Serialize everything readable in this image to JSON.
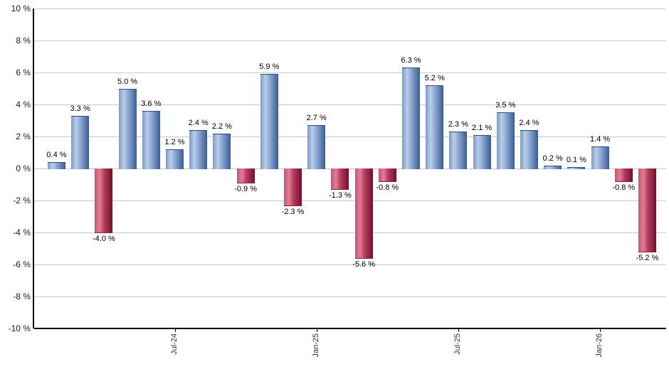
{
  "chart_data": {
    "type": "bar",
    "title": "",
    "xlabel": "",
    "ylabel": "",
    "grid": true,
    "legend": false,
    "values": [
      0.4,
      3.3,
      -4.0,
      5.0,
      3.6,
      1.2,
      2.4,
      2.2,
      -0.9,
      5.9,
      -2.3,
      2.7,
      -1.3,
      -5.6,
      -0.8,
      6.3,
      5.2,
      2.3,
      2.1,
      3.5,
      2.4,
      0.2,
      0.1,
      1.4,
      -0.8,
      -5.2
    ],
    "value_labels": [
      "0.4 %",
      "3.3 %",
      "-4.0 %",
      "5.0 %",
      "3.6 %",
      "1.2 %",
      "2.4 %",
      "2.2 %",
      "-0.9 %",
      "5.9 %",
      "-2.3 %",
      "2.7 %",
      "-1.3 %",
      "-5.6 %",
      "-0.8 %",
      "6.3 %",
      "5.2 %",
      "2.3 %",
      "2.1 %",
      "3.5 %",
      "2.4 %",
      "0.2 %",
      "0.1 %",
      "1.4 %",
      "-0.8 %",
      "-5.2 %"
    ],
    "y_axis": {
      "min": -10,
      "max": 10,
      "step": 2,
      "tick_labels": [
        "10 %",
        "8 %",
        "6 %",
        "4 %",
        "2 %",
        "0 %",
        "-2 %",
        "-4 %",
        "-6 %",
        "-8 %",
        "-10 %"
      ]
    },
    "x_axis": {
      "ticks": [
        {
          "index": 5,
          "label": "Jul-24"
        },
        {
          "index": 11,
          "label": "Jan-25"
        },
        {
          "index": 17,
          "label": "Jul-25"
        },
        {
          "index": 23,
          "label": "Jan-26"
        }
      ]
    },
    "colors": {
      "positive_bar_left": "#7b9ac8",
      "positive_bar_highlight": "#b9cde9",
      "positive_bar_right": "#3a5c95",
      "negative_bar_left": "#ca5274",
      "negative_bar_highlight": "#e07e93",
      "negative_bar_right": "#780d2d",
      "gridline": "#c9c9c9",
      "axis": "#000000",
      "value_label": "#000000",
      "tick_label": "#333333",
      "background": "#ffffff"
    }
  }
}
